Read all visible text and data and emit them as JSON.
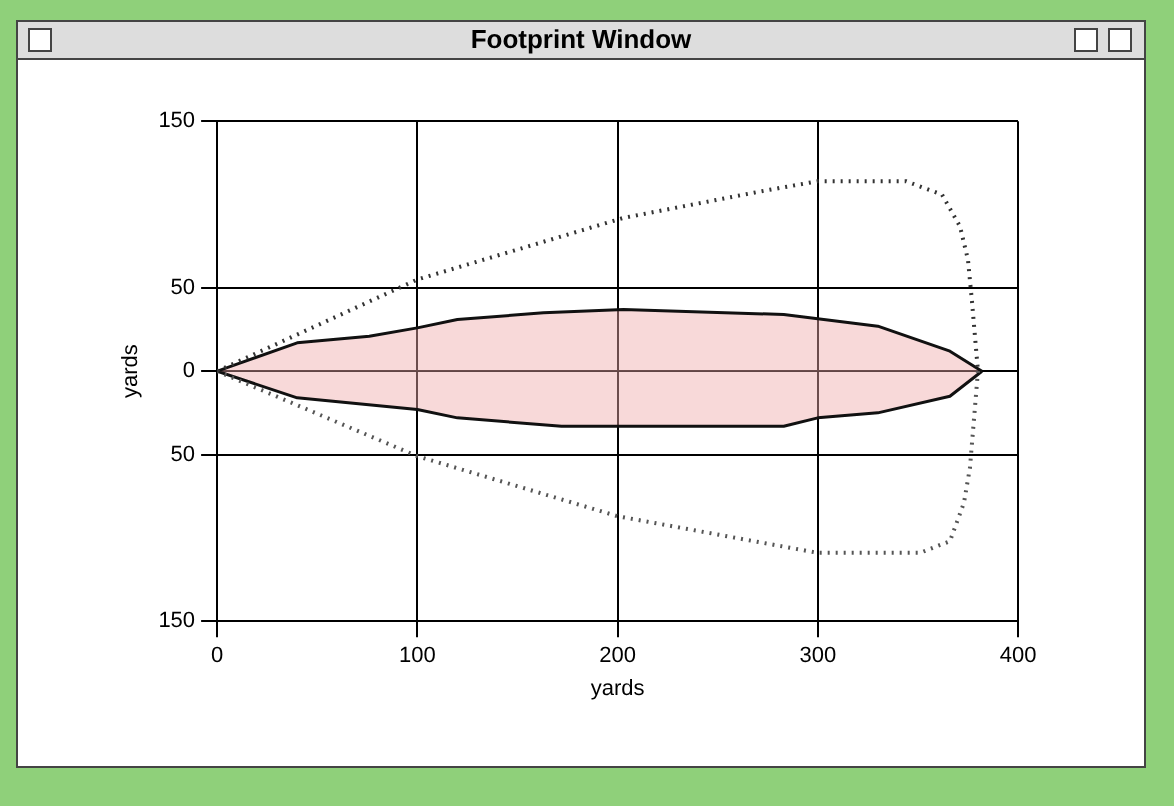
{
  "chart_data": {
    "type": "line",
    "title": "Footprint Window",
    "xlabel": "yards",
    "ylabel": "yards",
    "xlim": [
      0,
      400
    ],
    "xticks": [
      0,
      100,
      200,
      300,
      400
    ],
    "ylim": [
      -150,
      150
    ],
    "yticks": [
      {
        "value": -150,
        "label": "150"
      },
      {
        "value": -50,
        "label": "50"
      },
      0,
      50,
      150
    ],
    "grid": true,
    "legend": false,
    "marker": "none",
    "series": [
      {
        "type": "line",
        "line_style": "dotted",
        "color": "#333333",
        "x": [
          0,
          100,
          203,
          272,
          300,
          344,
          362,
          371,
          375,
          377,
          380
        ],
        "values": [
          0,
          55,
          92,
          108,
          114,
          114,
          106,
          87,
          67,
          42,
          0
        ]
      },
      {
        "type": "line",
        "line_style": "dotted",
        "color": "#555555",
        "x": [
          0,
          100,
          200,
          300,
          351,
          366,
          373,
          376,
          380
        ],
        "values": [
          0,
          -51,
          -87,
          -109,
          -109,
          -102,
          -79,
          -58,
          0
        ]
      },
      {
        "type": "area",
        "line_style": "solid",
        "color": "#111111",
        "x": [
          0,
          40,
          76,
          100,
          120,
          163,
          203,
          283,
          330,
          366,
          382
        ],
        "values": [
          0,
          17,
          21,
          26,
          31,
          35,
          37,
          34,
          27,
          12,
          0
        ]
      },
      {
        "type": "area",
        "line_style": "solid",
        "color": "#111111",
        "x": [
          0,
          40,
          100,
          120,
          172,
          283,
          300,
          330,
          366,
          382
        ],
        "values": [
          0,
          -16,
          -23,
          -28,
          -33,
          -33,
          -28,
          -25,
          -15,
          0
        ]
      }
    ]
  }
}
